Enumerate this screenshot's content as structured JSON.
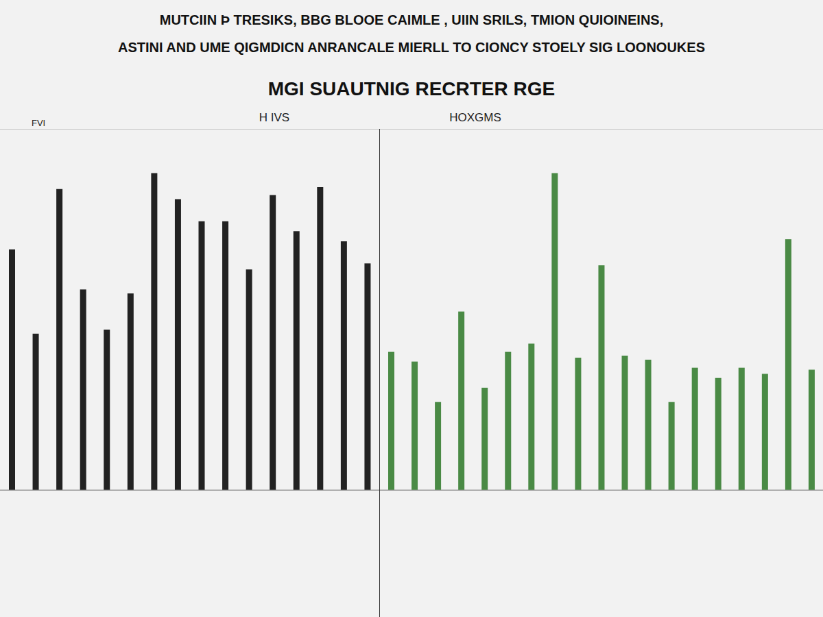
{
  "title": [
    "MUTCIIN Þ TRESIKS, BBG BLOOE CAIMLE , UIIN SRILS, TMION QUIOINEINS,",
    "ASTINI AND UME QIGMDICN ANRANCALE MIERLL TO CIONCY STOELY SIG LOONOUKES"
  ],
  "subtitle": "MGI SUAUTNIG RECRTER RGE",
  "chart_data": [
    {
      "type": "bar",
      "title": "H IVS",
      "ylabel": "FVI",
      "categories": [
        null,
        null,
        null,
        null,
        null,
        null,
        null,
        null,
        null,
        null,
        null,
        null,
        null,
        null,
        null,
        null
      ],
      "values": [
        6.0,
        3.9,
        7.5,
        5.0,
        4.0,
        4.9,
        7.9,
        7.25,
        6.7,
        6.7,
        5.5,
        7.35,
        6.45,
        7.55,
        6.2,
        5.65
      ],
      "color": "#222222",
      "ylim": [
        0,
        9
      ],
      "yticks": [
        0,
        1,
        2,
        3,
        4,
        5,
        6,
        7,
        8,
        9
      ],
      "grid": true,
      "tick_labels": false
    },
    {
      "type": "bar",
      "title": "HOXGMS",
      "categories": [
        null,
        null,
        null,
        null,
        null,
        null,
        null,
        null,
        null,
        null,
        null,
        null,
        null,
        null,
        null,
        null,
        null,
        null,
        null
      ],
      "values": [
        3.45,
        3.2,
        2.2,
        4.45,
        2.55,
        3.45,
        3.65,
        7.9,
        3.3,
        5.6,
        3.35,
        3.25,
        2.2,
        3.05,
        2.8,
        3.05,
        2.9,
        6.25,
        3.0
      ],
      "color": "#4a8a45",
      "ylim": [
        0,
        9
      ],
      "yticks": [
        0,
        1,
        2,
        3,
        4,
        5,
        6,
        7,
        8,
        9
      ],
      "grid": true,
      "tick_labels": false
    }
  ]
}
